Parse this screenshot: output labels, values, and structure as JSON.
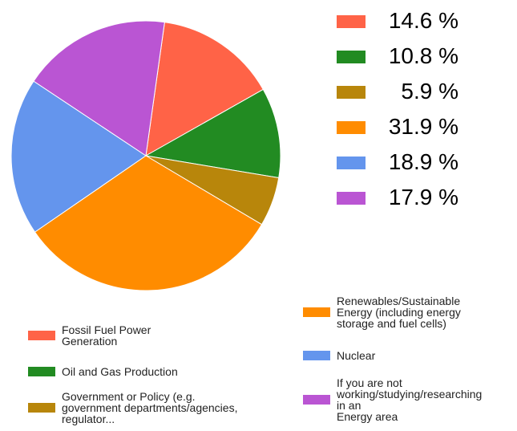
{
  "chart_data": {
    "type": "pie",
    "slices": [
      {
        "label": "Fossil Fuel Power\nGeneration",
        "value": 14.6,
        "display": "14.6 %",
        "color": "#ff6347"
      },
      {
        "label": "Oil and Gas Production",
        "value": 10.8,
        "display": "10.8 %",
        "color": "#228b22"
      },
      {
        "label": "Government or Policy (e.g.\ngovernment departments/agencies,\nregulator...",
        "value": 5.9,
        "display": "5.9 %",
        "color": "#b8860b"
      },
      {
        "label": "Renewables/Sustainable\nEnergy (including energy\nstorage and fuel cells)",
        "value": 31.9,
        "display": "31.9 %",
        "color": "#ff8c00"
      },
      {
        "label": "Nuclear",
        "value": 18.9,
        "display": "18.9 %",
        "color": "#6495ed"
      },
      {
        "label": "If you are not\nworking/studying/researching\nin an\nEnergy area",
        "value": 17.9,
        "display": "17.9 %",
        "color": "#ba55d3"
      }
    ],
    "start": "clockwise from about 12 o'clock",
    "legend_placement": "bottom (two columns)",
    "percent_list_placement": "right"
  }
}
